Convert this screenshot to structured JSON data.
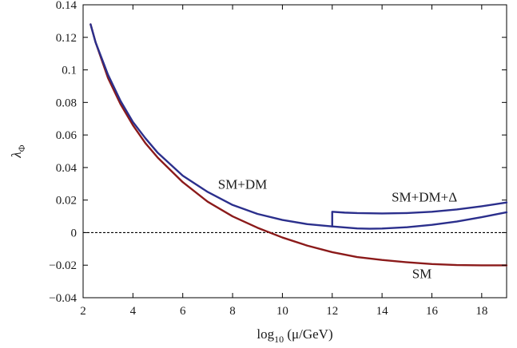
{
  "chart_data": {
    "type": "line",
    "xlabel": {
      "prefix": "log",
      "subscript": "10",
      "rest": " (μ/GeV)"
    },
    "ylabel": {
      "main": "λ",
      "subscript": "Φ"
    },
    "xlim": [
      2,
      19
    ],
    "ylim": [
      -0.04,
      0.14
    ],
    "xticks": [
      2,
      4,
      6,
      8,
      10,
      12,
      14,
      16,
      18
    ],
    "xtick_labels": [
      "2",
      "4",
      "6",
      "8",
      "10",
      "12",
      "14",
      "16",
      "18"
    ],
    "yticks": [
      -0.04,
      -0.02,
      0,
      0.02,
      0.04,
      0.06,
      0.08,
      0.1,
      0.12,
      0.14
    ],
    "ytick_labels": [
      "−0.04",
      "−0.02",
      "0",
      "0.02",
      "0.04",
      "0.06",
      "0.08",
      "0.1",
      "0.12",
      "0.14"
    ],
    "grid": false,
    "reference_line": {
      "y": 0,
      "style": "dashed",
      "color": "#000000"
    },
    "series": [
      {
        "name": "SM",
        "color": "#8b1a1a",
        "x": [
          2.3,
          2.5,
          3,
          3.5,
          4,
          4.5,
          5,
          6,
          7,
          8,
          9,
          10,
          11,
          12,
          13,
          14,
          15,
          16,
          17,
          18,
          19
        ],
        "y": [
          0.128,
          0.117,
          0.095,
          0.079,
          0.066,
          0.055,
          0.046,
          0.031,
          0.019,
          0.01,
          0.003,
          -0.003,
          -0.008,
          -0.012,
          -0.015,
          -0.0168,
          -0.0182,
          -0.0193,
          -0.0199,
          -0.0201,
          -0.0201
        ]
      },
      {
        "name": "SM+DM",
        "color": "#2b2f8c",
        "x": [
          2.3,
          2.5,
          3,
          3.5,
          4,
          4.5,
          5,
          6,
          7,
          8,
          9,
          10,
          11,
          12,
          13,
          13.5,
          14,
          15,
          16,
          17,
          18,
          19
        ],
        "y": [
          0.128,
          0.117,
          0.097,
          0.081,
          0.068,
          0.058,
          0.049,
          0.035,
          0.025,
          0.017,
          0.0115,
          0.0078,
          0.0052,
          0.0038,
          0.0026,
          0.0024,
          0.0025,
          0.0033,
          0.0048,
          0.0068,
          0.0095,
          0.0125
        ]
      },
      {
        "name": "SM+DM+Δ",
        "color": "#2b2f8c",
        "x": [
          12,
          12,
          12.5,
          13,
          14,
          15,
          16,
          17,
          18,
          19
        ],
        "y": [
          0.0038,
          0.0128,
          0.0123,
          0.012,
          0.0118,
          0.012,
          0.0128,
          0.0142,
          0.0162,
          0.0185
        ]
      }
    ],
    "annotations": [
      {
        "text": "SM+DM",
        "x": 8.4,
        "y": 0.027
      },
      {
        "text": "SM+DM+Δ",
        "x": 15.7,
        "y": 0.019
      },
      {
        "text": "SM",
        "x": 15.6,
        "y": -0.028
      }
    ]
  }
}
